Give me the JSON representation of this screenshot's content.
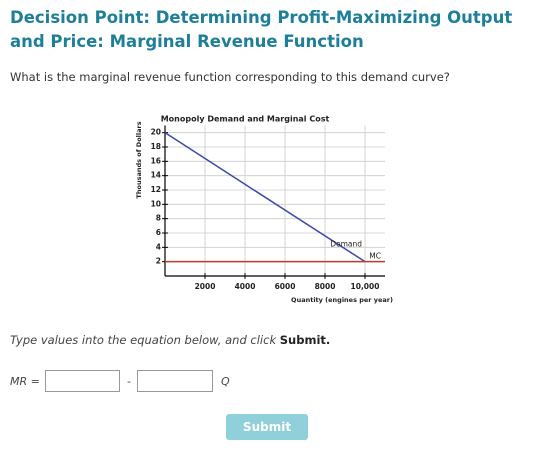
{
  "header": {
    "title": "Decision Point: Determining Profit-Maximizing Output and Price: Marginal Revenue Function"
  },
  "question": "What is the marginal revenue function corresponding to this demand curve?",
  "chart_data": {
    "type": "line",
    "title": "Monopoly Demand and Marginal Cost",
    "x_label": "Quantity (engines per year)",
    "y_label": "Thousands of Dollars",
    "x": [
      0,
      10000,
      11000
    ],
    "series": [
      {
        "name": "Demand",
        "color": "#3c4aa8",
        "values": [
          20,
          2,
          null
        ]
      },
      {
        "name": "MC",
        "color": "#c0392b",
        "values": [
          2,
          2,
          2
        ]
      }
    ],
    "xlim": [
      0,
      11000
    ],
    "ylim": [
      0,
      21
    ],
    "xticks": [
      2000,
      4000,
      6000,
      8000,
      {
        "value": 10000,
        "label": "10,000"
      }
    ],
    "yticks": [
      2,
      4,
      6,
      8,
      10,
      12,
      14,
      16,
      18,
      20
    ],
    "grid": true
  },
  "instruction": {
    "text": "Type values into the equation below, and click ",
    "emphasis": "Submit."
  },
  "equation": {
    "lhs": "MR =",
    "operator": "-",
    "variable": "Q"
  },
  "button": "Submit"
}
